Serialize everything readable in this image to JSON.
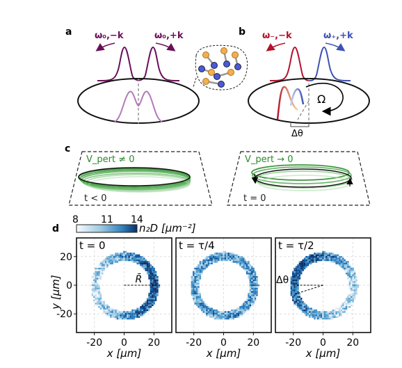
{
  "panels": {
    "a": {
      "label": "a",
      "mode_left": "ω₀,−k",
      "mode_right": "ω₀,+k"
    },
    "b": {
      "label": "b",
      "mode_left": "ω₋,−k",
      "mode_right": "ω₊,+k",
      "omega_label": "Ω",
      "dtheta_label": "Δθ"
    },
    "c": {
      "label": "c",
      "left_vpert": "V_pert ≠ 0",
      "left_time": "t < 0",
      "right_vpert": "V_pert → 0",
      "right_time": "t = 0"
    },
    "d": {
      "label": "d",
      "colorbar": {
        "ticks": [
          "8",
          "11",
          "14"
        ],
        "label": "n₂D [μm⁻²]",
        "colormap": "Blues"
      },
      "plots": [
        {
          "title": "t = 0",
          "annotation": "R̄"
        },
        {
          "title": "t = τ/4",
          "annotation": ""
        },
        {
          "title": "t = τ/2",
          "annotation": "Δθ"
        }
      ],
      "x_axis_label": "x [μm]",
      "y_axis_label": "y [μm]",
      "x_ticks": [
        "-20",
        "0",
        "20"
      ],
      "y_ticks": [
        "20",
        "0",
        "-20"
      ]
    }
  },
  "colors": {
    "purple_dark": "#6a0f5a",
    "purple_light": "#b27ab8",
    "red": "#b5122b",
    "blue": "#3e52b5",
    "green": "#2a8a2a",
    "ring_blue": "#1f5fa0"
  }
}
